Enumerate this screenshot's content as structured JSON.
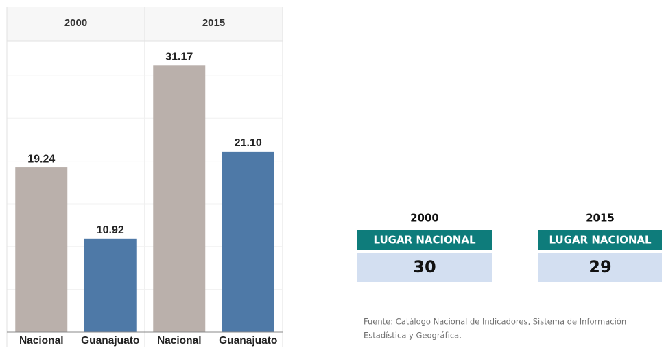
{
  "chart_data": {
    "type": "bar",
    "panels": [
      {
        "title": "2000",
        "categories": [
          "Nacional",
          "Guanajuato"
        ],
        "values": [
          19.24,
          10.92
        ],
        "value_labels": [
          "19.24",
          "10.92"
        ]
      },
      {
        "title": "2015",
        "categories": [
          "Nacional",
          "Guanajuato"
        ],
        "values": [
          31.17,
          21.1
        ],
        "value_labels": [
          "31.17",
          "21.10"
        ]
      }
    ],
    "colors": [
      "#bab0ab",
      "#4e79a7"
    ],
    "ylim": [
      0,
      34
    ],
    "yticks": [
      0,
      5,
      10,
      15,
      20,
      25,
      30
    ],
    "grid": true
  },
  "rankings": [
    {
      "year": "2000",
      "label": "LUGAR NACIONAL",
      "value": 30
    },
    {
      "year": "2015",
      "label": "LUGAR NACIONAL",
      "value": 29
    }
  ],
  "source": [
    "Fuente: Catálogo Nacional de Indicadores, Sistema de Información",
    "Estadística y Geográfica."
  ]
}
